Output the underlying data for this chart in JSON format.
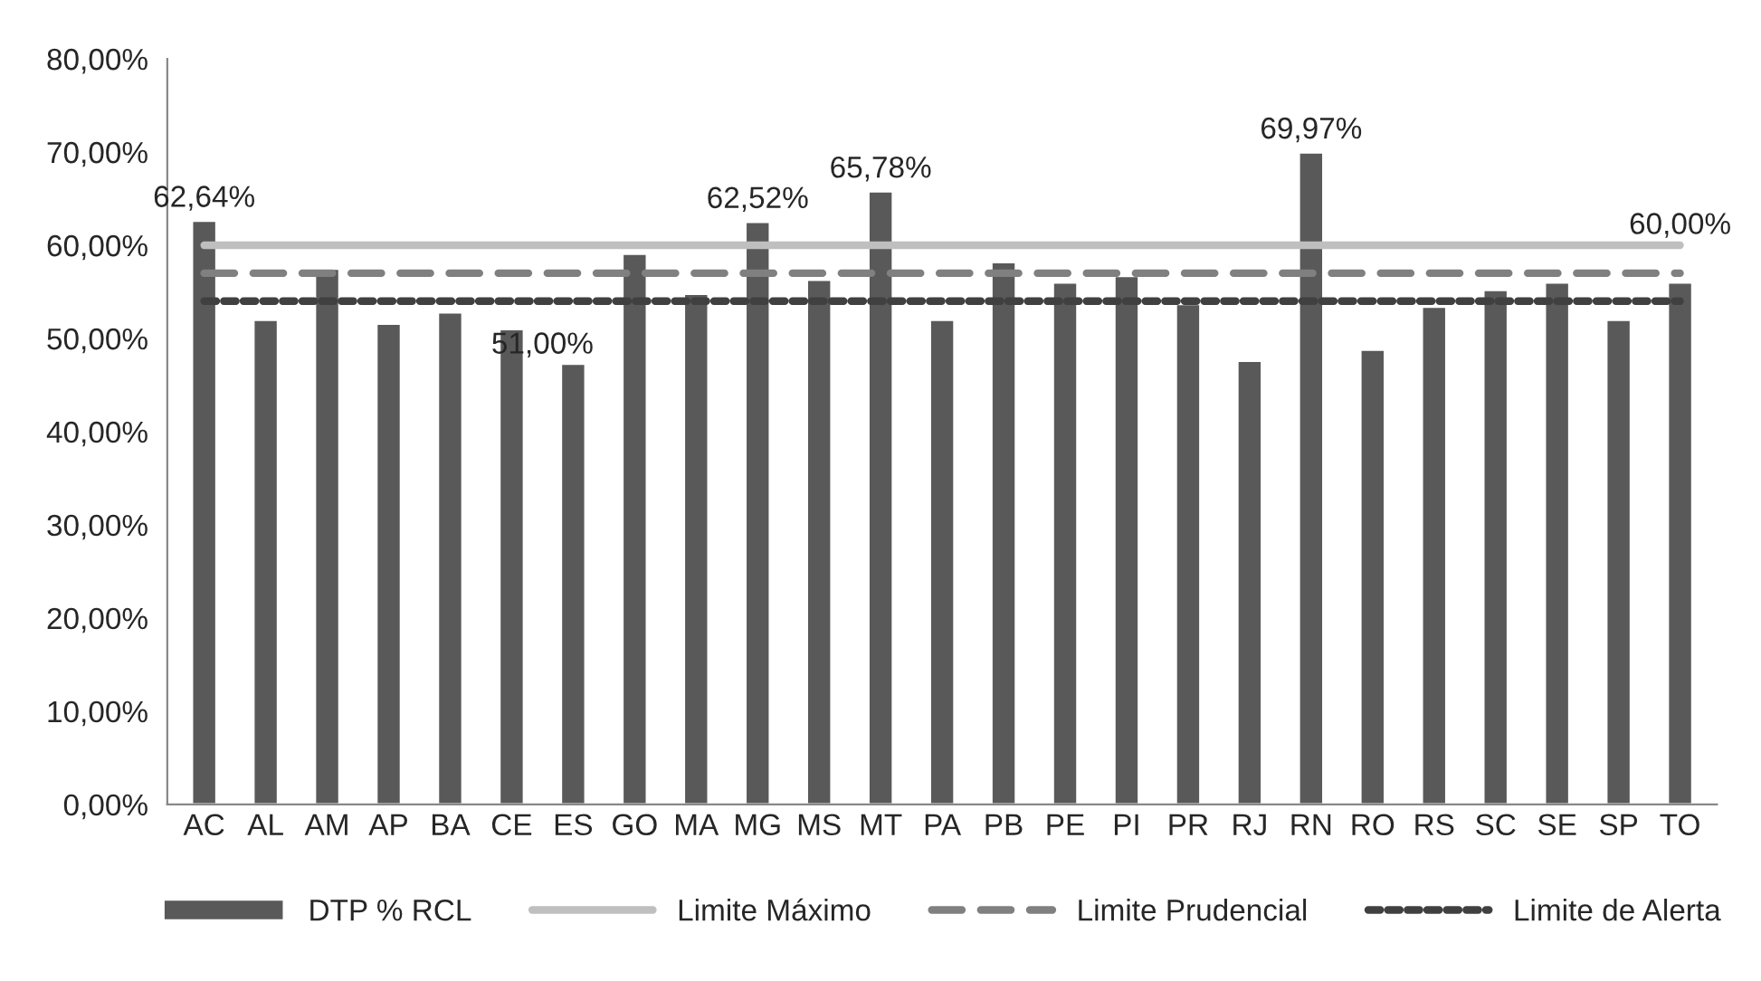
{
  "chart_data": {
    "type": "bar",
    "categories": [
      "AC",
      "AL",
      "AM",
      "AP",
      "BA",
      "CE",
      "ES",
      "GO",
      "MA",
      "MG",
      "MS",
      "MT",
      "PA",
      "PB",
      "PE",
      "PI",
      "PR",
      "RJ",
      "RN",
      "RO",
      "RS",
      "SC",
      "SE",
      "SP",
      "TO"
    ],
    "series": [
      {
        "name": "DTP % RCL",
        "color": "#595959",
        "values": [
          62.64,
          52.0,
          57.5,
          51.6,
          52.8,
          51.0,
          47.3,
          59.1,
          54.8,
          62.52,
          56.3,
          65.78,
          52.0,
          58.2,
          56.0,
          56.7,
          53.7,
          47.6,
          69.97,
          48.8,
          53.4,
          55.2,
          56.0,
          52.0,
          56.0
        ],
        "value_labels": [
          "62,64%",
          null,
          null,
          null,
          null,
          "51,00%",
          null,
          null,
          null,
          "62,52%",
          null,
          "65,78%",
          null,
          null,
          null,
          null,
          null,
          null,
          "69,97%",
          null,
          null,
          null,
          null,
          null,
          null
        ]
      },
      {
        "name": "Limite Máximo",
        "type": "line",
        "color": "#bfbfbf",
        "line_style": "solid",
        "values": [
          60,
          60,
          60,
          60,
          60,
          60,
          60,
          60,
          60,
          60,
          60,
          60,
          60,
          60,
          60,
          60,
          60,
          60,
          60,
          60,
          60,
          60,
          60,
          60,
          60
        ],
        "value_labels": [
          null,
          null,
          null,
          null,
          null,
          null,
          null,
          null,
          null,
          null,
          null,
          null,
          null,
          null,
          null,
          null,
          null,
          null,
          null,
          null,
          null,
          null,
          null,
          null,
          "60,00%"
        ]
      },
      {
        "name": "Limite Prudencial",
        "type": "line",
        "color": "#808080",
        "line_style": "dashed",
        "values": [
          57,
          57,
          57,
          57,
          57,
          57,
          57,
          57,
          57,
          57,
          57,
          57,
          57,
          57,
          57,
          57,
          57,
          57,
          57,
          57,
          57,
          57,
          57,
          57,
          57
        ]
      },
      {
        "name": "Limite de Alerta",
        "type": "line",
        "color": "#404040",
        "line_style": "dotted",
        "values": [
          54,
          54,
          54,
          54,
          54,
          54,
          54,
          54,
          54,
          54,
          54,
          54,
          54,
          54,
          54,
          54,
          54,
          54,
          54,
          54,
          54,
          54,
          54,
          54,
          54
        ]
      }
    ],
    "ylim": [
      0,
      80
    ],
    "yticks": [
      {
        "value": 0,
        "label": "0,00%"
      },
      {
        "value": 10,
        "label": "10,00%"
      },
      {
        "value": 20,
        "label": "20,00%"
      },
      {
        "value": 30,
        "label": "30,00%"
      },
      {
        "value": 40,
        "label": "40,00%"
      },
      {
        "value": 50,
        "label": "50,00%"
      },
      {
        "value": 60,
        "label": "60,00%"
      },
      {
        "value": 70,
        "label": "70,00%"
      },
      {
        "value": 80,
        "label": "80,00%"
      }
    ],
    "grid": false,
    "legend": "bottom"
  }
}
